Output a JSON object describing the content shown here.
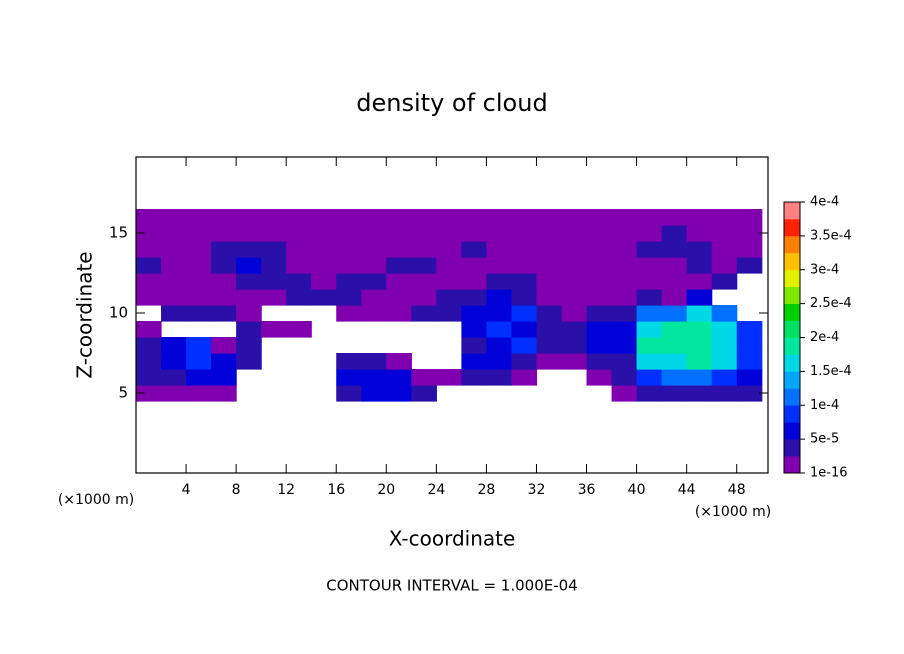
{
  "chart_data": {
    "type": "contour",
    "title": "density of cloud",
    "x_label": "X-coordinate",
    "y_label": "Z-coordinate",
    "x_unit_left": "(×1000 m)",
    "x_unit_right": "(×1000 m)",
    "note": "CONTOUR INTERVAL = 1.000E-04",
    "xlim": [
      0,
      50.5
    ],
    "ylim": [
      0,
      19.75
    ],
    "xticks": [
      4,
      8,
      12,
      16,
      20,
      24,
      28,
      32,
      36,
      40,
      44,
      48
    ],
    "yticks": [
      5,
      10,
      15
    ],
    "x": [
      1,
      3,
      5,
      7,
      9,
      11,
      13,
      15,
      17,
      19,
      21,
      23,
      25,
      27,
      29,
      31,
      33,
      35,
      37,
      39,
      41,
      43,
      45,
      47,
      49
    ],
    "z": [
      5,
      6,
      7,
      8,
      9,
      10,
      11,
      12,
      13,
      14,
      15,
      16
    ],
    "values": [
      [
        1e-05,
        1e-05,
        1e-05,
        1e-05,
        null,
        null,
        null,
        null,
        3e-05,
        6e-05,
        6e-05,
        3e-05,
        null,
        null,
        null,
        null,
        null,
        null,
        null,
        1e-05,
        3e-05,
        3e-05,
        3e-05,
        3e-05,
        3e-05
      ],
      [
        3e-05,
        3e-05,
        6e-05,
        6e-05,
        null,
        null,
        null,
        null,
        6e-05,
        6e-05,
        6e-05,
        1e-05,
        1e-05,
        3e-05,
        3e-05,
        1e-05,
        null,
        null,
        1e-05,
        3e-05,
        9e-05,
        0.00012,
        0.00012,
        9e-05,
        6e-05
      ],
      [
        3e-05,
        6e-05,
        9e-05,
        6e-05,
        3e-05,
        null,
        null,
        null,
        3e-05,
        3e-05,
        1e-05,
        null,
        null,
        6e-05,
        6e-05,
        3e-05,
        1e-05,
        1e-05,
        3e-05,
        3e-05,
        0.00016,
        0.00016,
        0.00018,
        0.00016,
        9e-05
      ],
      [
        3e-05,
        6e-05,
        9e-05,
        1e-05,
        3e-05,
        null,
        null,
        null,
        null,
        null,
        null,
        null,
        null,
        3e-05,
        6e-05,
        9e-05,
        3e-05,
        3e-05,
        6e-05,
        6e-05,
        0.00018,
        0.00018,
        0.00018,
        0.00016,
        9e-05
      ],
      [
        1e-05,
        null,
        null,
        null,
        3e-05,
        1e-05,
        1e-05,
        null,
        null,
        null,
        null,
        null,
        null,
        6e-05,
        9e-05,
        6e-05,
        3e-05,
        3e-05,
        6e-05,
        6e-05,
        0.00016,
        0.00018,
        0.00018,
        0.00016,
        9e-05
      ],
      [
        null,
        3e-05,
        3e-05,
        3e-05,
        1e-05,
        null,
        null,
        null,
        1e-05,
        1e-05,
        1e-05,
        3e-05,
        3e-05,
        6e-05,
        6e-05,
        9e-05,
        3e-05,
        1e-05,
        3e-05,
        3e-05,
        0.00012,
        0.00012,
        0.00016,
        0.00012,
        null
      ],
      [
        1e-05,
        1e-05,
        1e-05,
        1e-05,
        1e-05,
        1e-05,
        3e-05,
        3e-05,
        3e-05,
        1e-05,
        1e-05,
        1e-05,
        3e-05,
        3e-05,
        6e-05,
        3e-05,
        1e-05,
        1e-05,
        1e-05,
        1e-05,
        3e-05,
        1e-05,
        6e-05,
        null,
        null
      ],
      [
        1e-05,
        1e-05,
        1e-05,
        1e-05,
        3e-05,
        3e-05,
        3e-05,
        1e-05,
        3e-05,
        3e-05,
        1e-05,
        1e-05,
        1e-05,
        1e-05,
        3e-05,
        3e-05,
        1e-05,
        1e-05,
        1e-05,
        1e-05,
        1e-05,
        1e-05,
        1e-05,
        3e-05,
        null
      ],
      [
        3e-05,
        1e-05,
        1e-05,
        3e-05,
        6e-05,
        3e-05,
        1e-05,
        1e-05,
        1e-05,
        1e-05,
        3e-05,
        3e-05,
        1e-05,
        1e-05,
        1e-05,
        1e-05,
        1e-05,
        1e-05,
        1e-05,
        1e-05,
        1e-05,
        1e-05,
        3e-05,
        1e-05,
        3e-05
      ],
      [
        1e-05,
        1e-05,
        1e-05,
        3e-05,
        3e-05,
        3e-05,
        1e-05,
        1e-05,
        1e-05,
        1e-05,
        1e-05,
        1e-05,
        1e-05,
        3e-05,
        1e-05,
        1e-05,
        1e-05,
        1e-05,
        1e-05,
        1e-05,
        3e-05,
        3e-05,
        3e-05,
        1e-05,
        1e-05
      ],
      [
        1e-05,
        1e-05,
        1e-05,
        1e-05,
        1e-05,
        1e-05,
        1e-05,
        1e-05,
        1e-05,
        1e-05,
        1e-05,
        1e-05,
        1e-05,
        1e-05,
        1e-05,
        1e-05,
        1e-05,
        1e-05,
        1e-05,
        1e-05,
        1e-05,
        3e-05,
        1e-05,
        1e-05,
        1e-05
      ],
      [
        1e-05,
        1e-05,
        1e-05,
        1e-05,
        1e-05,
        1e-05,
        1e-05,
        1e-05,
        1e-05,
        1e-05,
        1e-05,
        1e-05,
        1e-05,
        1e-05,
        1e-05,
        1e-05,
        1e-05,
        1e-05,
        1e-05,
        1e-05,
        1e-05,
        1e-05,
        1e-05,
        1e-05,
        1e-05
      ]
    ],
    "clim": [
      0,
      0.0004
    ],
    "colorbar_ticks": [
      1e-16,
      {
        "value": 5e-05,
        "label": "5e-5"
      },
      {
        "value": 0.0001,
        "label": "1e-4"
      },
      {
        "value": 0.00015,
        "label": "1.5e-4"
      },
      {
        "value": 0.0002,
        "label": "2e-4"
      },
      {
        "value": 0.00025,
        "label": "2.5e-4"
      },
      {
        "value": 0.0003,
        "label": "3e-4"
      },
      {
        "value": 0.00035,
        "label": "3.5e-4"
      },
      {
        "value": 0.0004,
        "label": "4e-4"
      }
    ],
    "colors": [
      "#8000b0",
      "#2a10a8",
      "#0000d8",
      "#0030ff",
      "#0070ff",
      "#00a8ff",
      "#00d8e8",
      "#00e8a0",
      "#00e060",
      "#00d000",
      "#80e800",
      "#e0f000",
      "#ffc000",
      "#ff8000",
      "#ff2000",
      "#ff8080"
    ]
  }
}
